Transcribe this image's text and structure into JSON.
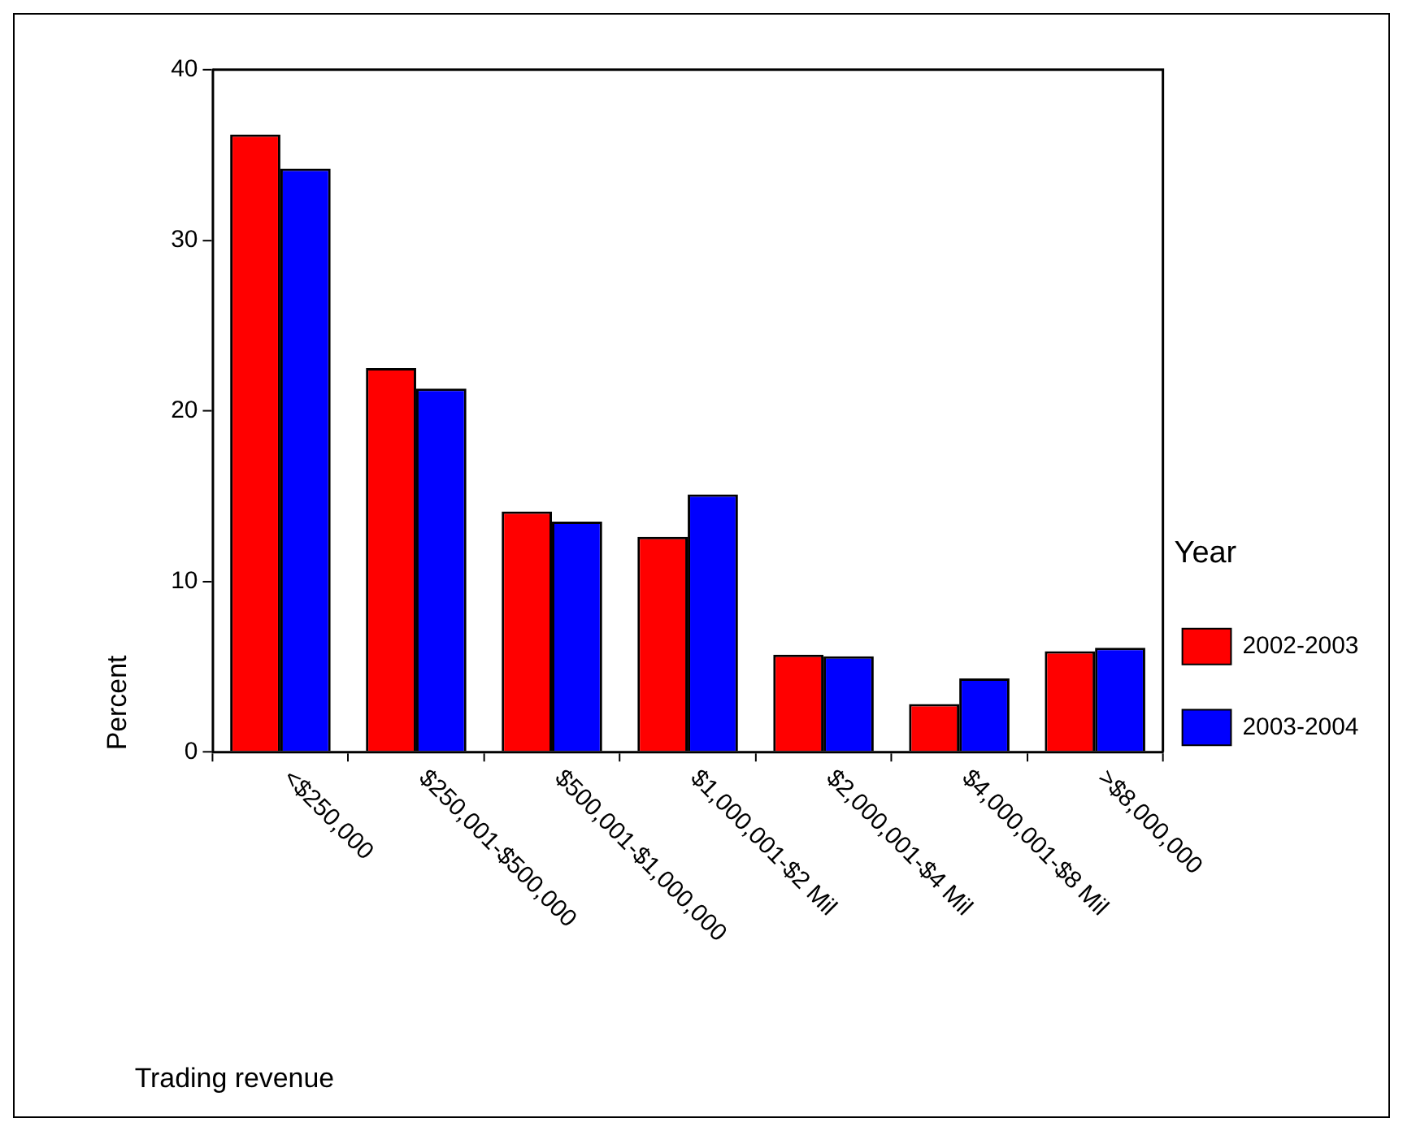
{
  "chart_data": {
    "type": "bar",
    "xlabel": "Trading revenue",
    "ylabel": "Percent",
    "legend_title": "Year",
    "legend": "right",
    "categories": [
      "<$250,000",
      "$250,001-$500,000",
      "$500,001-$1,000,000",
      "$1,000,001-$2 Mil",
      "$2,000,001-$4 Mil",
      "$4,000,001-$8 Mil",
      ">$8,000,000"
    ],
    "series": [
      {
        "name": "2002-2003",
        "color": "#ff0000",
        "values": [
          36.2,
          22.5,
          14.1,
          12.6,
          5.7,
          2.8,
          5.9
        ]
      },
      {
        "name": "2003-2004",
        "color": "#0000ff",
        "values": [
          34.2,
          21.3,
          13.5,
          15.1,
          5.6,
          4.3,
          6.1
        ]
      }
    ],
    "ylim": [
      0,
      40
    ],
    "yticks": [
      0,
      10,
      20,
      30,
      40
    ]
  }
}
